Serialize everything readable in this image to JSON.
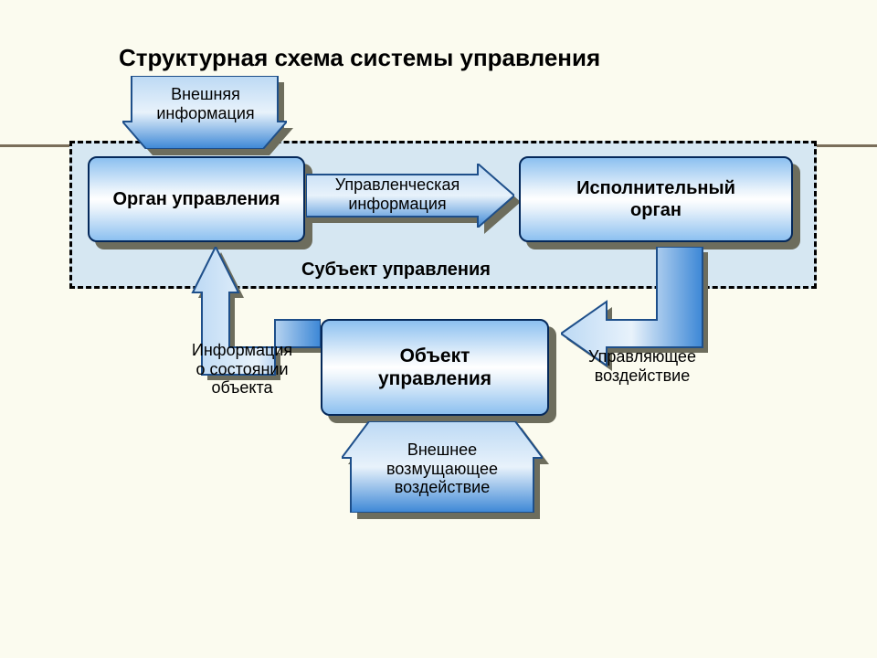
{
  "type": "flowchart",
  "background_color": "#fbfbef",
  "dashed_box_bg": "#d6e7f2",
  "title": "Структурная схема системы управления",
  "title_fontsize": 26,
  "subject_label": "Субъект управления",
  "nodes": {
    "organ": {
      "label": "Орган управления",
      "fontsize": 20
    },
    "exec": {
      "label": "Исполнительный\nорган",
      "fontsize": 20
    },
    "object": {
      "label": "Объект\nуправления",
      "fontsize": 21
    }
  },
  "arrows": {
    "ext_info": {
      "label": "Внешняя\nинформация",
      "fontsize": 18
    },
    "mgmt_info": {
      "label": "Управленческая\nинформация",
      "fontsize": 18
    },
    "state_info": {
      "label": "Информация\nо состоянии\nобъекта",
      "fontsize": 18
    },
    "control": {
      "label": "Управляющее\nвоздействие",
      "fontsize": 18
    },
    "ext_disturb": {
      "label": "Внешнее\nвозмущающее\nвоздействие",
      "fontsize": 18
    }
  },
  "colors": {
    "node_border": "#04285a",
    "node_grad_outer": "#8cc0f0",
    "node_grad_inner": "#ffffff",
    "arrow_fill_light": "#bcd9f4",
    "arrow_fill_dark": "#3c87d6",
    "arrow_stroke": "#1e4f8a",
    "shadow": "#6d6d5d",
    "hr": "#7a6e5a"
  }
}
